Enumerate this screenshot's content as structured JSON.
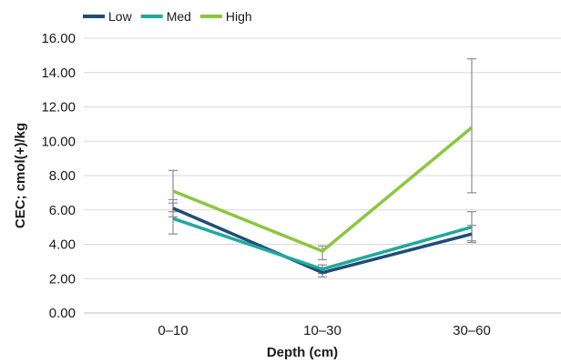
{
  "chart_data": {
    "type": "line",
    "categories": [
      "0–10",
      "10–30",
      "30–60"
    ],
    "xlabel": "Depth (cm)",
    "ylabel": "CEC; cmol(+)/kg",
    "ylim": [
      0,
      16
    ],
    "yticks": [
      "0.00",
      "2.00",
      "4.00",
      "6.00",
      "8.00",
      "10.00",
      "12.00",
      "14.00",
      "16.00"
    ],
    "ytick_values": [
      0,
      2,
      4,
      6,
      8,
      10,
      12,
      14,
      16
    ],
    "grid": true,
    "legend_position": "top-left",
    "series": [
      {
        "name": "Low",
        "color": "#1f4e79",
        "values": [
          6.1,
          2.35,
          4.6
        ],
        "error_low": [
          5.6,
          2.1,
          4.1
        ],
        "error_high": [
          6.6,
          2.6,
          5.1
        ]
      },
      {
        "name": "Med",
        "color": "#21a99b",
        "values": [
          5.5,
          2.55,
          5.0
        ],
        "error_low": [
          4.6,
          2.3,
          4.2
        ],
        "error_high": [
          6.4,
          2.8,
          5.9
        ]
      },
      {
        "name": "High",
        "color": "#8cc63f",
        "values": [
          7.1,
          3.6,
          10.8
        ],
        "error_low": [
          5.9,
          3.1,
          7.0
        ],
        "error_high": [
          8.3,
          3.9,
          14.8
        ]
      }
    ]
  }
}
